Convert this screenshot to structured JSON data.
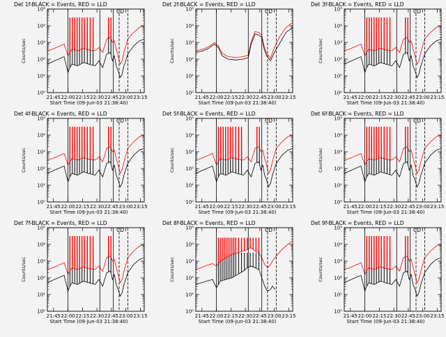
{
  "chart_data": {
    "type": "line",
    "grid": false,
    "panel_count": 9,
    "ylabel": "Counts/sec",
    "xlabel": "Start Time (09-Jun-03 21:38:40)",
    "x_tick_labels": [
      "21:45",
      "22:00",
      "22:15",
      "22:30",
      "22:45",
      "23:00",
      "23:15"
    ],
    "x_tick_minutes": [
      45,
      60,
      75,
      90,
      105,
      120,
      135
    ],
    "xlim_minutes": [
      38.67,
      139.0
    ],
    "y_tick_labels": [
      "10⁰",
      "10¹",
      "10²",
      "10³",
      "10⁴",
      "10⁵"
    ],
    "ylim_log10": [
      0,
      5
    ],
    "series_colors": {
      "events": "#000000",
      "lld": "#ff0000"
    },
    "series_names": [
      "Events",
      "LLD"
    ],
    "marker_label": "CD",
    "solid_vertical_lines_minutes": [
      60,
      93,
      107
    ],
    "dashed_vertical_lines_minutes": [
      113,
      122
    ],
    "panels": [
      {
        "title": "Det 1f-BLACK = Events, RED = LLD",
        "variant": "spiky"
      },
      {
        "title": "Det 2f-BLACK = Events, RED = LLD",
        "variant": "smooth"
      },
      {
        "title": "Det 3f-BLACK = Events, RED = LLD",
        "variant": "spiky"
      },
      {
        "title": "Det 4f-BLACK = Events, RED = LLD",
        "variant": "spiky"
      },
      {
        "title": "Det 5f-BLACK = Events, RED = LLD",
        "variant": "spiky"
      },
      {
        "title": "Det 6f-BLACK = Events, RED = LLD",
        "variant": "spiky"
      },
      {
        "title": "Det 7f-BLACK = Events, RED = LLD",
        "variant": "spiky"
      },
      {
        "title": "Det 8f-BLACK = Events, RED = LLD",
        "variant": "dense"
      },
      {
        "title": "Det 9f-BLACK = Events, RED = LLD",
        "variant": "spiky"
      }
    ],
    "profiles": {
      "spiky": {
        "events": [
          [
            38.7,
            1.7
          ],
          [
            44,
            1.85
          ],
          [
            50,
            2.0
          ],
          [
            56,
            2.15
          ],
          [
            60,
            1.2
          ],
          [
            62,
            1.5
          ],
          [
            64,
            1.7
          ],
          [
            70,
            1.6
          ],
          [
            76,
            1.8
          ],
          [
            82,
            1.7
          ],
          [
            88,
            1.6
          ],
          [
            92,
            1.9
          ],
          [
            96,
            1.5
          ],
          [
            100,
            2.3
          ],
          [
            104,
            2.4
          ],
          [
            106,
            1.9
          ],
          [
            108,
            2.2
          ],
          [
            110,
            1.6
          ],
          [
            112,
            1.3
          ],
          [
            114,
            0.9
          ],
          [
            116,
            1.1
          ],
          [
            118,
            1.6
          ],
          [
            122,
            2.3
          ],
          [
            128,
            2.8
          ],
          [
            134,
            3.1
          ],
          [
            139,
            3.2
          ]
        ],
        "lld": [
          [
            38.7,
            2.5
          ],
          [
            44,
            2.6
          ],
          [
            50,
            2.75
          ],
          [
            56,
            2.9
          ],
          [
            60,
            2.2
          ],
          [
            62,
            2.4
          ],
          [
            64,
            2.6
          ],
          [
            70,
            2.5
          ],
          [
            76,
            2.65
          ],
          [
            82,
            2.55
          ],
          [
            88,
            2.5
          ],
          [
            92,
            2.7
          ],
          [
            96,
            2.4
          ],
          [
            100,
            3.2
          ],
          [
            104,
            3.3
          ],
          [
            106,
            3.0
          ],
          [
            108,
            3.1
          ],
          [
            110,
            2.6
          ],
          [
            112,
            2.2
          ],
          [
            114,
            1.7
          ],
          [
            116,
            1.9
          ],
          [
            118,
            2.4
          ],
          [
            122,
            3.2
          ],
          [
            128,
            3.6
          ],
          [
            134,
            3.9
          ],
          [
            139,
            4.0
          ]
        ],
        "spikes_minutes": [
          62,
          64.5,
          67,
          69.5,
          72,
          74.5,
          77,
          80,
          83,
          86,
          102,
          104.5
        ],
        "spike_peak_log10": 4.5
      },
      "smooth": {
        "events": [
          [
            38.7,
            2.4
          ],
          [
            46,
            2.5
          ],
          [
            52,
            2.65
          ],
          [
            58,
            2.9
          ],
          [
            62,
            2.7
          ],
          [
            66,
            2.2
          ],
          [
            72,
            2.0
          ],
          [
            80,
            1.95
          ],
          [
            88,
            2.0
          ],
          [
            93,
            2.1
          ],
          [
            96,
            2.9
          ],
          [
            100,
            3.5
          ],
          [
            104,
            3.45
          ],
          [
            107,
            3.3
          ],
          [
            109,
            2.7
          ],
          [
            112,
            2.2
          ],
          [
            116,
            1.9
          ],
          [
            120,
            2.4
          ],
          [
            126,
            3.0
          ],
          [
            132,
            3.6
          ],
          [
            139,
            3.9
          ]
        ],
        "lld": [
          [
            38.7,
            2.5
          ],
          [
            46,
            2.6
          ],
          [
            52,
            2.75
          ],
          [
            58,
            3.0
          ],
          [
            62,
            2.8
          ],
          [
            66,
            2.35
          ],
          [
            72,
            2.15
          ],
          [
            80,
            2.1
          ],
          [
            88,
            2.15
          ],
          [
            93,
            2.25
          ],
          [
            96,
            3.05
          ],
          [
            100,
            3.65
          ],
          [
            104,
            3.6
          ],
          [
            107,
            3.45
          ],
          [
            109,
            2.85
          ],
          [
            112,
            2.35
          ],
          [
            116,
            2.05
          ],
          [
            120,
            2.7
          ],
          [
            126,
            3.4
          ],
          [
            132,
            3.9
          ],
          [
            139,
            4.2
          ]
        ],
        "spikes_minutes": [],
        "spike_peak_log10": 4.5
      },
      "dense": {
        "events": [
          [
            38.7,
            1.6
          ],
          [
            44,
            1.7
          ],
          [
            50,
            1.8
          ],
          [
            56,
            1.9
          ],
          [
            60,
            1.4
          ],
          [
            64,
            1.8
          ],
          [
            70,
            1.9
          ],
          [
            76,
            2.0
          ],
          [
            82,
            2.2
          ],
          [
            88,
            2.4
          ],
          [
            92,
            2.6
          ],
          [
            96,
            2.7
          ],
          [
            100,
            2.6
          ],
          [
            104,
            2.5
          ],
          [
            107,
            2.0
          ],
          [
            110,
            1.5
          ],
          [
            113,
            1.2
          ],
          [
            116,
            1.3
          ],
          [
            118,
            1.5
          ],
          [
            121,
            1.3
          ]
        ],
        "lld": [
          [
            38.7,
            2.5
          ],
          [
            44,
            2.6
          ],
          [
            50,
            2.75
          ],
          [
            56,
            2.85
          ],
          [
            60,
            2.7
          ],
          [
            64,
            3.0
          ],
          [
            70,
            3.2
          ],
          [
            76,
            3.4
          ],
          [
            82,
            3.5
          ],
          [
            88,
            3.6
          ],
          [
            92,
            3.7
          ],
          [
            96,
            3.8
          ],
          [
            100,
            3.6
          ],
          [
            104,
            3.5
          ],
          [
            107,
            3.2
          ],
          [
            110,
            2.8
          ],
          [
            113,
            2.6
          ],
          [
            116,
            2.8
          ],
          [
            118,
            3.0
          ],
          [
            122,
            3.3
          ],
          [
            128,
            3.7
          ],
          [
            134,
            4.0
          ],
          [
            139,
            4.2
          ]
        ],
        "spikes_minutes": [
          62,
          64,
          66,
          68,
          70,
          72,
          74,
          76,
          78,
          80,
          83,
          86,
          89,
          92,
          95,
          98,
          101,
          104
        ],
        "spike_peak_log10": 4.4
      }
    }
  }
}
